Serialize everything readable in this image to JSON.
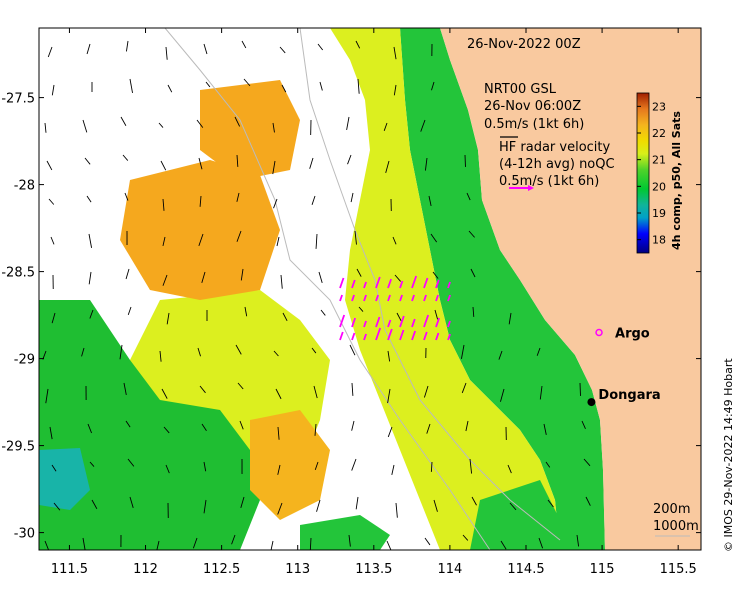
{
  "chart_data": {
    "type": "heatmap",
    "title": "26-Nov-2022 00Z",
    "xlabel": "",
    "ylabel": "",
    "xlim": [
      111.3,
      115.65
    ],
    "ylim": [
      -30.1,
      -27.1
    ],
    "x_ticks": [
      "111.5",
      "112",
      "112.5",
      "113",
      "113.5",
      "114",
      "114.5",
      "115",
      "115.5"
    ],
    "y_ticks": [
      "-27.5",
      "-28",
      "-28.5",
      "-29",
      "-29.5",
      "-30"
    ],
    "x_tick_values": [
      111.5,
      112,
      112.5,
      113,
      113.5,
      114,
      114.5,
      115,
      115.5
    ],
    "y_tick_values": [
      -27.5,
      -28,
      -28.5,
      -29,
      -29.5,
      -30
    ],
    "colorbar": {
      "label": "4h comp, p50, All Sats",
      "ticks": [
        "18",
        "19",
        "20",
        "21",
        "22",
        "23"
      ],
      "tick_values": [
        18,
        19,
        20,
        21,
        22,
        23
      ],
      "range": [
        17.5,
        23.5
      ]
    },
    "annotations": {
      "gsl_title": "NRT00 GSL",
      "gsl_time": "26-Nov 06:00Z",
      "gsl_scale": "0.5m/s (1kt 6h)",
      "hf_line1": "HF radar velocity",
      "hf_line2": "(4-12h avg) noQC",
      "hf_scale": "0.5m/s (1kt 6h)",
      "depth_200": "200m",
      "depth_1000": "1000m"
    },
    "points": [
      {
        "name": "Argo",
        "lon": 114.98,
        "lat": -28.85
      },
      {
        "name": "Dongara",
        "lon": 114.93,
        "lat": -29.25
      }
    ],
    "credit": "© IMOS 29-Nov-2022 14:49 Hobart",
    "colors": {
      "land": "#f9c99f",
      "arrow": "#000000",
      "hf_arrow": "#ff00ff",
      "argo": "#ff00ff"
    }
  }
}
